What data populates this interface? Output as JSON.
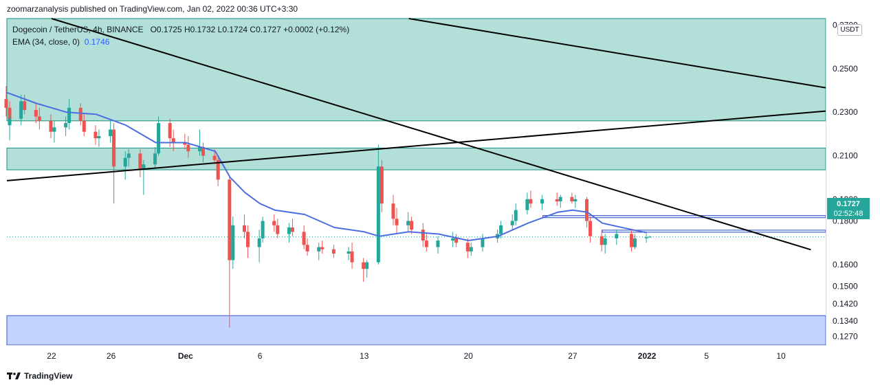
{
  "header": {
    "publisher_line": "zoomarzanalysis published on TradingView.com, Jan 02, 2022 00:36 UTC+3:30"
  },
  "legend": {
    "symbol": "Dogecoin / TetherUS, 4h, BINANCE",
    "open": "O0.1725",
    "high": "H0.1732",
    "low": "L0.1724",
    "close": "C0.1727",
    "change": "+0.0002 (+0.12%)",
    "ema_label": "EMA (34, close, 0)",
    "ema_value": "0.1746"
  },
  "price_axis": {
    "unit": "USDT",
    "last_price": "0.1727",
    "countdown": "02:52:48"
  },
  "footer": {
    "brand": "TradingView"
  },
  "colors": {
    "up": "#26a69a",
    "down": "#ef5350",
    "ema": "#4a6ee0",
    "zone_green": "#b2dfd8",
    "zone_blue": "#c5d3ff",
    "trendline": "#000000"
  },
  "chart_data": {
    "type": "candlestick",
    "title": "Dogecoin / TetherUS, 4h, BINANCE",
    "x_ticks": [
      "22",
      "26",
      "Dec",
      "6",
      "13",
      "20",
      "27",
      "2022",
      "5",
      "10"
    ],
    "x_tick_dates": [
      "2021-11-22",
      "2021-11-26",
      "2021-12-01",
      "2021-12-06",
      "2021-12-13",
      "2021-12-20",
      "2021-12-27",
      "2022-01-01",
      "2022-01-05",
      "2022-01-10"
    ],
    "y_ticks": [
      0.127,
      0.134,
      0.142,
      0.15,
      0.16,
      0.18,
      0.19,
      0.21,
      0.23,
      0.25,
      0.27
    ],
    "y_tick_labels": [
      "0.1270",
      "0.1340",
      "0.1420",
      "0.1500",
      "0.1600",
      "0.1800",
      "0.1900",
      "0.2100",
      "0.2300",
      "0.2500",
      "0.2700"
    ],
    "ylim": [
      0.123,
      0.273
    ],
    "last_close": 0.1727,
    "series": [
      {
        "name": "EMA (34, close, 0)",
        "points": [
          [
            "2021-11-19",
            0.239
          ],
          [
            "2021-11-21",
            0.234
          ],
          [
            "2021-11-23",
            0.23
          ],
          [
            "2021-11-25",
            0.229
          ],
          [
            "2021-11-27",
            0.224
          ],
          [
            "2021-11-29",
            0.216
          ],
          [
            "2021-12-01",
            0.216
          ],
          [
            "2021-12-02",
            0.214
          ],
          [
            "2021-12-03",
            0.212
          ],
          [
            "2021-12-04",
            0.2
          ],
          [
            "2021-12-05",
            0.193
          ],
          [
            "2021-12-06",
            0.188
          ],
          [
            "2021-12-07",
            0.185
          ],
          [
            "2021-12-09",
            0.183
          ],
          [
            "2021-12-11",
            0.177
          ],
          [
            "2021-12-13",
            0.175
          ],
          [
            "2021-12-14",
            0.173
          ],
          [
            "2021-12-16",
            0.175
          ],
          [
            "2021-12-18",
            0.174
          ],
          [
            "2021-12-20",
            0.171
          ],
          [
            "2021-12-22",
            0.173
          ],
          [
            "2021-12-24",
            0.179
          ],
          [
            "2021-12-26",
            0.184
          ],
          [
            "2021-12-27",
            0.185
          ],
          [
            "2021-12-28",
            0.184
          ],
          [
            "2021-12-29",
            0.179
          ],
          [
            "2021-12-31",
            0.176
          ],
          [
            "2022-01-01",
            0.1746
          ]
        ]
      }
    ],
    "candles": [
      [
        "2021-11-19",
        0.236,
        0.242,
        0.228,
        0.232
      ],
      [
        "2021-11-19",
        0.232,
        0.235,
        0.221,
        0.224
      ],
      [
        "2021-11-19",
        0.224,
        0.229,
        0.217,
        0.227
      ],
      [
        "2021-11-20",
        0.227,
        0.238,
        0.224,
        0.235
      ],
      [
        "2021-11-20",
        0.235,
        0.238,
        0.229,
        0.231
      ],
      [
        "2021-11-21",
        0.231,
        0.234,
        0.225,
        0.228
      ],
      [
        "2021-11-21",
        0.228,
        0.232,
        0.222,
        0.226
      ],
      [
        "2021-11-22",
        0.226,
        0.229,
        0.218,
        0.221
      ],
      [
        "2021-11-22",
        0.221,
        0.226,
        0.216,
        0.223
      ],
      [
        "2021-11-23",
        0.223,
        0.228,
        0.219,
        0.225
      ],
      [
        "2021-11-23",
        0.225,
        0.236,
        0.222,
        0.232
      ],
      [
        "2021-11-24",
        0.232,
        0.234,
        0.224,
        0.226
      ],
      [
        "2021-11-24",
        0.226,
        0.229,
        0.219,
        0.221
      ],
      [
        "2021-11-25",
        0.221,
        0.224,
        0.215,
        0.218
      ],
      [
        "2021-11-25",
        0.218,
        0.222,
        0.214,
        0.219
      ],
      [
        "2021-11-26",
        0.219,
        0.226,
        0.216,
        0.222
      ],
      [
        "2021-11-26",
        0.222,
        0.225,
        0.188,
        0.205
      ],
      [
        "2021-11-27",
        0.205,
        0.212,
        0.199,
        0.209
      ],
      [
        "2021-11-27",
        0.209,
        0.213,
        0.205,
        0.211
      ],
      [
        "2021-11-28",
        0.211,
        0.213,
        0.2,
        0.204
      ],
      [
        "2021-11-28",
        0.204,
        0.208,
        0.192,
        0.206
      ],
      [
        "2021-11-29",
        0.206,
        0.214,
        0.204,
        0.211
      ],
      [
        "2021-11-29",
        0.211,
        0.228,
        0.21,
        0.225
      ],
      [
        "2021-11-30",
        0.225,
        0.227,
        0.214,
        0.218
      ],
      [
        "2021-11-30",
        0.218,
        0.222,
        0.212,
        0.216
      ],
      [
        "2021-12-01",
        0.216,
        0.22,
        0.213,
        0.215
      ],
      [
        "2021-12-01",
        0.215,
        0.219,
        0.209,
        0.212
      ],
      [
        "2021-12-02",
        0.212,
        0.222,
        0.21,
        0.214
      ],
      [
        "2021-12-02",
        0.214,
        0.216,
        0.207,
        0.21
      ],
      [
        "2021-12-03",
        0.21,
        0.213,
        0.206,
        0.208
      ],
      [
        "2021-12-03",
        0.208,
        0.21,
        0.196,
        0.199
      ],
      [
        "2021-12-04",
        0.199,
        0.2,
        0.131,
        0.162
      ],
      [
        "2021-12-04",
        0.162,
        0.182,
        0.158,
        0.178
      ],
      [
        "2021-12-05",
        0.178,
        0.183,
        0.172,
        0.175
      ],
      [
        "2021-12-05",
        0.175,
        0.178,
        0.163,
        0.168
      ],
      [
        "2021-12-06",
        0.168,
        0.176,
        0.161,
        0.172
      ],
      [
        "2021-12-06",
        0.172,
        0.182,
        0.17,
        0.18
      ],
      [
        "2021-12-07",
        0.18,
        0.183,
        0.175,
        0.178
      ],
      [
        "2021-12-07",
        0.178,
        0.181,
        0.172,
        0.174
      ],
      [
        "2021-12-08",
        0.174,
        0.179,
        0.17,
        0.177
      ],
      [
        "2021-12-08",
        0.177,
        0.181,
        0.173,
        0.175
      ],
      [
        "2021-12-09",
        0.175,
        0.178,
        0.167,
        0.169
      ],
      [
        "2021-12-09",
        0.169,
        0.172,
        0.164,
        0.166
      ],
      [
        "2021-12-10",
        0.166,
        0.17,
        0.162,
        0.168
      ],
      [
        "2021-12-10",
        0.168,
        0.171,
        0.165,
        0.167
      ],
      [
        "2021-12-11",
        0.167,
        0.169,
        0.163,
        0.165
      ],
      [
        "2021-12-12",
        0.165,
        0.168,
        0.162,
        0.166
      ],
      [
        "2021-12-12",
        0.166,
        0.17,
        0.158,
        0.161
      ],
      [
        "2021-12-13",
        0.161,
        0.163,
        0.152,
        0.158
      ],
      [
        "2021-12-13",
        0.158,
        0.162,
        0.154,
        0.161
      ],
      [
        "2021-12-14",
        0.161,
        0.215,
        0.16,
        0.205
      ],
      [
        "2021-12-14",
        0.205,
        0.208,
        0.184,
        0.188
      ],
      [
        "2021-12-15",
        0.188,
        0.192,
        0.178,
        0.181
      ],
      [
        "2021-12-15",
        0.181,
        0.186,
        0.174,
        0.178
      ],
      [
        "2021-12-16",
        0.178,
        0.184,
        0.175,
        0.18
      ],
      [
        "2021-12-16",
        0.18,
        0.182,
        0.174,
        0.176
      ],
      [
        "2021-12-17",
        0.176,
        0.179,
        0.168,
        0.171
      ],
      [
        "2021-12-17",
        0.171,
        0.174,
        0.166,
        0.168
      ],
      [
        "2021-12-18",
        0.168,
        0.173,
        0.165,
        0.171
      ],
      [
        "2021-12-19",
        0.171,
        0.175,
        0.168,
        0.172
      ],
      [
        "2021-12-19",
        0.172,
        0.174,
        0.168,
        0.17
      ],
      [
        "2021-12-20",
        0.17,
        0.172,
        0.163,
        0.166
      ],
      [
        "2021-12-20",
        0.166,
        0.17,
        0.164,
        0.168
      ],
      [
        "2021-12-21",
        0.168,
        0.174,
        0.166,
        0.172
      ],
      [
        "2021-12-22",
        0.172,
        0.176,
        0.17,
        0.174
      ],
      [
        "2021-12-22",
        0.174,
        0.18,
        0.172,
        0.178
      ],
      [
        "2021-12-23",
        0.178,
        0.183,
        0.176,
        0.18
      ],
      [
        "2021-12-23",
        0.18,
        0.188,
        0.178,
        0.185
      ],
      [
        "2021-12-24",
        0.185,
        0.193,
        0.183,
        0.19
      ],
      [
        "2021-12-24",
        0.19,
        0.194,
        0.186,
        0.188
      ],
      [
        "2021-12-25",
        0.188,
        0.192,
        0.185,
        0.19
      ],
      [
        "2021-12-26",
        0.19,
        0.193,
        0.187,
        0.189
      ],
      [
        "2021-12-26",
        0.189,
        0.192,
        0.186,
        0.191
      ],
      [
        "2021-12-27",
        0.191,
        0.193,
        0.188,
        0.189
      ],
      [
        "2021-12-27",
        0.189,
        0.192,
        0.186,
        0.19
      ],
      [
        "2021-12-28",
        0.19,
        0.191,
        0.177,
        0.18
      ],
      [
        "2021-12-28",
        0.18,
        0.182,
        0.17,
        0.173
      ],
      [
        "2021-12-29",
        0.173,
        0.176,
        0.166,
        0.169
      ],
      [
        "2021-12-29",
        0.169,
        0.174,
        0.165,
        0.172
      ],
      [
        "2021-12-30",
        0.172,
        0.176,
        0.169,
        0.174
      ],
      [
        "2021-12-31",
        0.174,
        0.176,
        0.166,
        0.168
      ],
      [
        "2021-12-31",
        0.168,
        0.174,
        0.167,
        0.172
      ],
      [
        "2022-01-01",
        0.172,
        0.174,
        0.17,
        0.1725
      ],
      [
        "2022-01-01",
        0.1725,
        0.1732,
        0.1724,
        0.1727
      ]
    ],
    "zones": [
      {
        "from": "2021-11-19",
        "to": "2022-01-13",
        "low": 0.226,
        "high": 0.273,
        "color": "green"
      },
      {
        "from": "2021-11-19",
        "to": "2022-01-13",
        "low": 0.2035,
        "high": 0.2135,
        "color": "green"
      },
      {
        "from": "2021-11-19",
        "to": "2022-01-13",
        "low": 0.123,
        "high": 0.1365,
        "color": "blue"
      }
    ],
    "level_boxes": [
      {
        "from": "2021-12-25",
        "to": "2022-01-13",
        "low": 0.1815,
        "high": 0.1825
      },
      {
        "from": "2021-12-29",
        "to": "2022-01-13",
        "low": 0.1748,
        "high": 0.1758
      }
    ],
    "trendlines": [
      {
        "from": [
          "2021-11-19",
          0.1985
        ],
        "to": [
          "2022-01-13",
          0.2305
        ]
      },
      {
        "from": [
          "2021-11-22",
          0.273
        ],
        "to": [
          "2022-01-12",
          0.1668
        ]
      },
      {
        "from": [
          "2021-12-16",
          0.273
        ],
        "to": [
          "2022-01-13",
          0.2412
        ]
      }
    ]
  }
}
